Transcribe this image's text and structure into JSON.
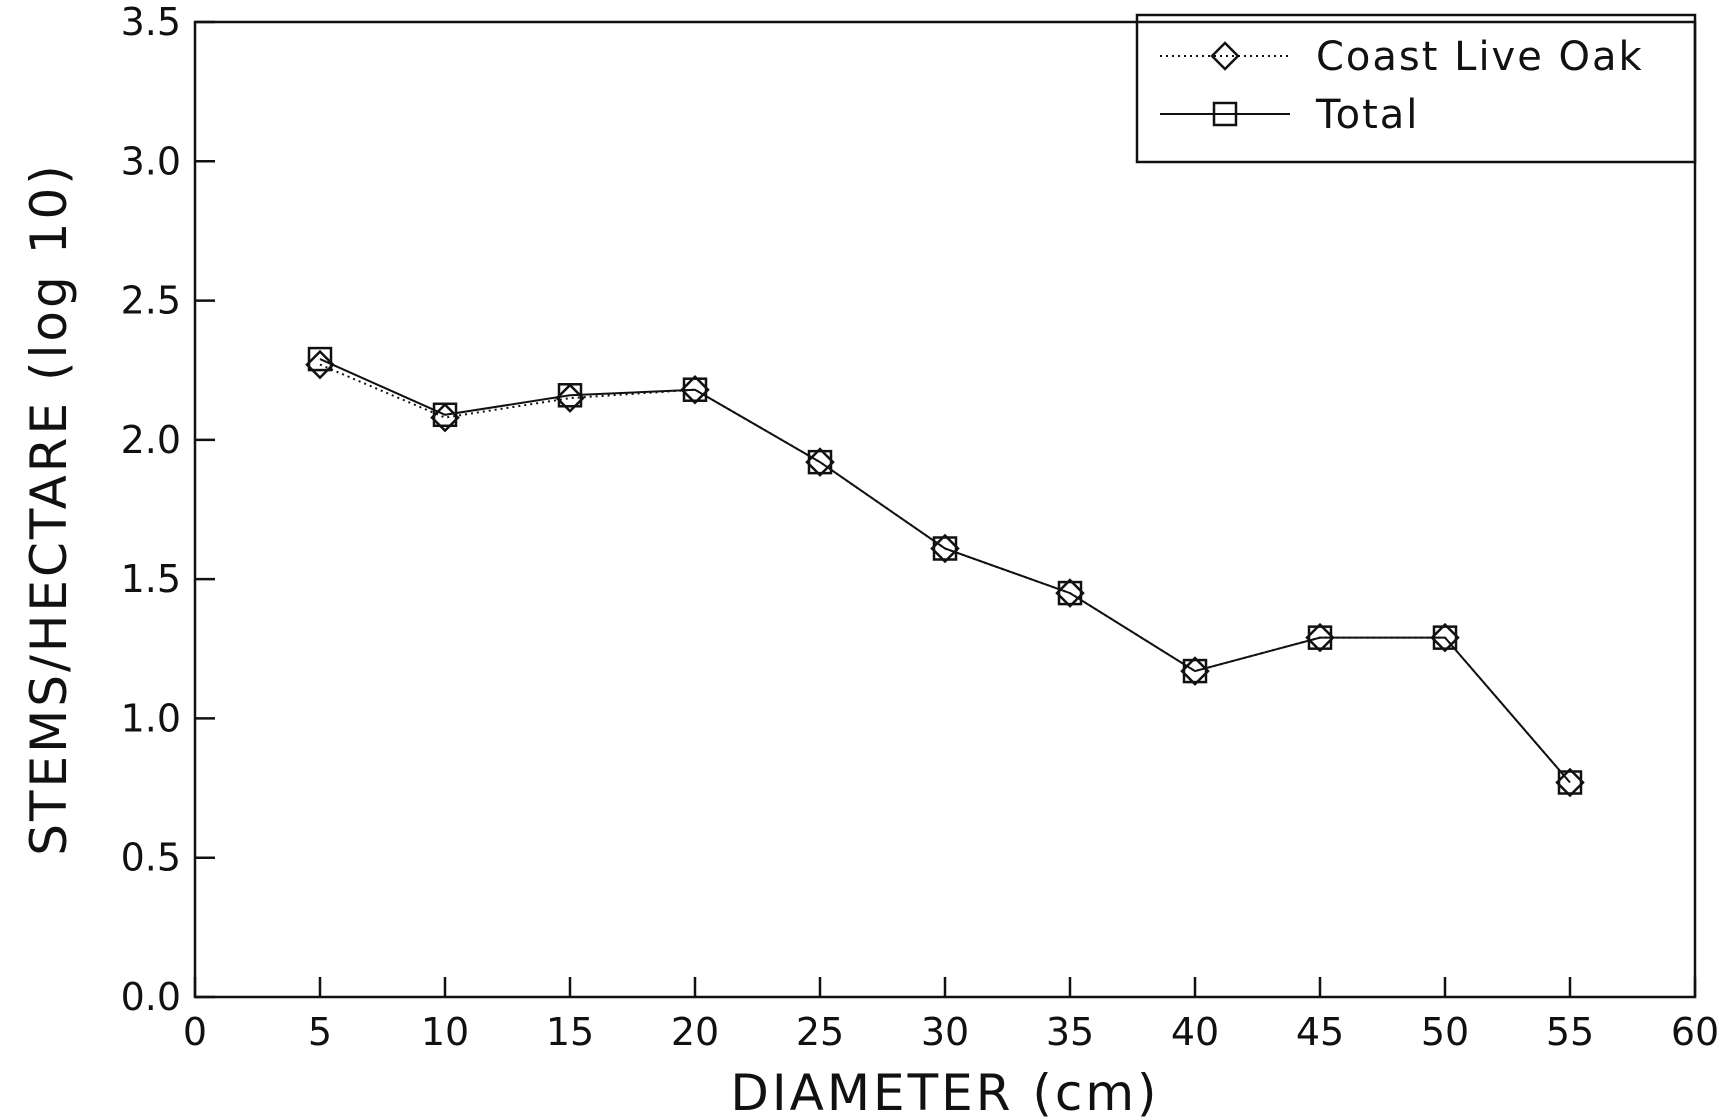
{
  "chart_data": {
    "type": "line",
    "title": "",
    "xlabel": "DIAMETER (cm)",
    "ylabel": "STEMS/HECTARE (log 10)",
    "xlim": [
      0,
      60
    ],
    "ylim": [
      0.0,
      3.5
    ],
    "x_ticks": [
      "0",
      "5",
      "10",
      "15",
      "20",
      "25",
      "30",
      "35",
      "40",
      "45",
      "50",
      "55",
      "60"
    ],
    "y_ticks": [
      "0.0",
      "0.5",
      "1.0",
      "1.5",
      "2.0",
      "2.5",
      "3.0",
      "3.5"
    ],
    "grid": false,
    "legend_position": "top-right",
    "x": [
      5,
      10,
      15,
      20,
      25,
      30,
      35,
      40,
      45,
      50,
      55
    ],
    "series": [
      {
        "name": "Coast Live Oak",
        "marker": "diamond",
        "line_style": "dotted",
        "values": [
          2.27,
          2.08,
          2.15,
          2.18,
          1.92,
          1.61,
          1.45,
          1.17,
          1.29,
          1.29,
          0.77
        ]
      },
      {
        "name": "Total",
        "marker": "square",
        "line_style": "solid",
        "values": [
          2.29,
          2.09,
          2.16,
          2.18,
          1.92,
          1.61,
          1.45,
          1.17,
          1.29,
          1.29,
          0.77
        ]
      }
    ]
  }
}
